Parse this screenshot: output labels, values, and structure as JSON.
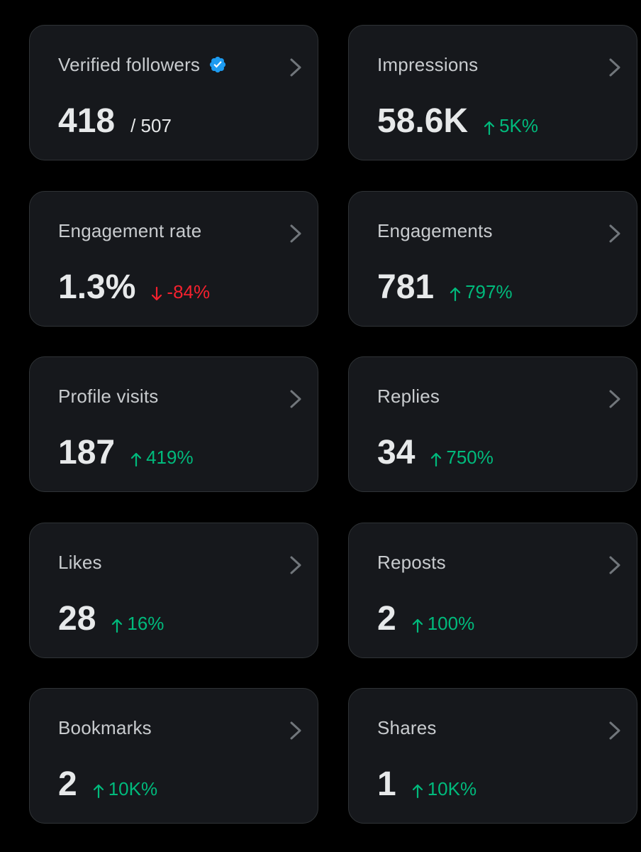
{
  "cards": [
    {
      "label": "Verified followers",
      "value": "418",
      "total": "/ 507",
      "verified": true,
      "colors": {
        "badge": "#1d9bf0"
      }
    },
    {
      "label": "Impressions",
      "value": "58.6K",
      "delta": "5K%",
      "trend": "up"
    },
    {
      "label": "Engagement rate",
      "value": "1.3%",
      "delta": "-84%",
      "trend": "down"
    },
    {
      "label": "Engagements",
      "value": "781",
      "delta": "797%",
      "trend": "up"
    },
    {
      "label": "Profile visits",
      "value": "187",
      "delta": "419%",
      "trend": "up"
    },
    {
      "label": "Replies",
      "value": "34",
      "delta": "750%",
      "trend": "up"
    },
    {
      "label": "Likes",
      "value": "28",
      "delta": "16%",
      "trend": "up"
    },
    {
      "label": "Reposts",
      "value": "2",
      "delta": "100%",
      "trend": "up"
    },
    {
      "label": "Bookmarks",
      "value": "2",
      "delta": "10K%",
      "trend": "up"
    },
    {
      "label": "Shares",
      "value": "1",
      "delta": "10K%",
      "trend": "up"
    }
  ],
  "colors": {
    "background": "#000000",
    "card": "#16181c",
    "positive": "#00ba7c",
    "negative": "#f4212e"
  },
  "icons": {
    "chevron": "chevron-right-icon",
    "verified": "verified-badge-icon",
    "up": "arrow-up-icon",
    "down": "arrow-down-icon"
  }
}
